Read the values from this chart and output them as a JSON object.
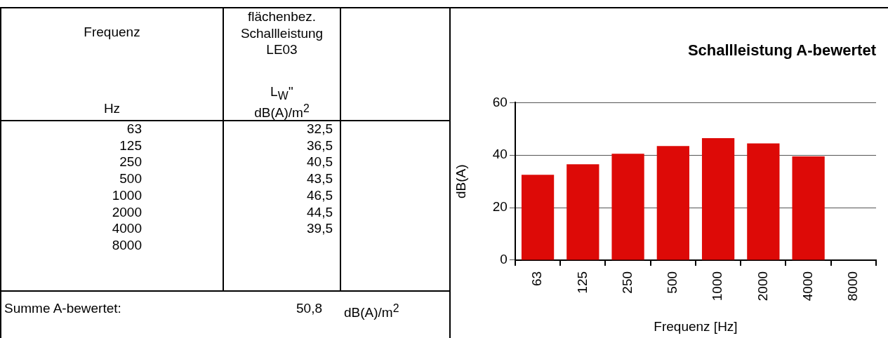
{
  "chart_data": [
    {
      "type": "other",
      "annotations": [
        "Frequenz",
        "Hz",
        "flächenbez. Schallleistung LE03",
        "L$_{W}$''",
        "dB(A)/m$^{2}$",
        "63",
        "125",
        "250",
        "500",
        "1000",
        "2000",
        "4000",
        "8000",
        "32,5",
        "36,5",
        "40,5",
        "43,5",
        "46,5",
        "44,5",
        "39,5",
        "Summe A-bewertet:",
        "50,8",
        "dB(A)/m$^{2}$"
      ]
    },
    {
      "type": "bar",
      "title": "Schallleistung A-bewertet",
      "xlabel": "Frequenz [Hz]",
      "ylabel": "dB(A)",
      "categories": [
        "63",
        "125",
        "250",
        "500",
        "1000",
        "2000",
        "4000",
        "8000"
      ],
      "values": [
        32.5,
        36.5,
        40.5,
        43.5,
        46.5,
        44.5,
        39.5,
        null
      ],
      "color": "#dd0a07",
      "ylim": [
        0,
        60
      ],
      "yticks": [
        0,
        20,
        40,
        60
      ],
      "grid": "y"
    }
  ]
}
